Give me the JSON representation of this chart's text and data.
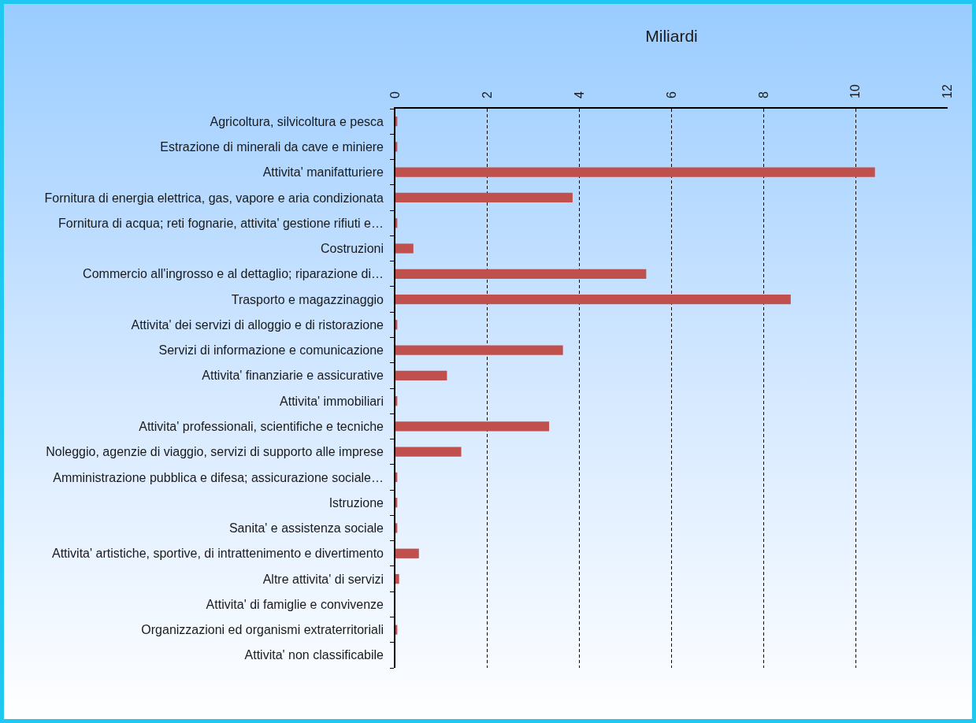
{
  "chart_data": {
    "type": "bar",
    "orientation": "horizontal",
    "xlabel": "Miliardi",
    "categories": [
      "Agricoltura, silvicoltura e pesca",
      "Estrazione di minerali da cave e miniere",
      "Attivita' manifatturiere",
      "Fornitura di energia elettrica, gas, vapore e aria condizionata",
      "Fornitura di acqua; reti fognarie, attivita' gestione rifiuti e…",
      "Costruzioni",
      "Commercio all'ingrosso e al dettaglio; riparazione di…",
      "Trasporto e magazzinaggio",
      "Attivita' dei servizi di alloggio e di ristorazione",
      "Servizi di informazione e comunicazione",
      "Attivita' finanziarie e assicurative",
      "Attivita' immobiliari",
      "Attivita' professionali, scientifiche e tecniche",
      "Noleggio, agenzie di viaggio, servizi di supporto alle imprese",
      "Amministrazione pubblica e difesa; assicurazione sociale…",
      "Istruzione",
      "Sanita' e assistenza sociale",
      "Attivita' artistiche, sportive, di intrattenimento e divertimento",
      "Altre attivita' di servizi",
      "Attivita' di famiglie e convivenze",
      "Organizzazioni ed organismi extraterritoriali",
      "Attivita' non classificabile"
    ],
    "values": [
      0.04,
      0.04,
      10.42,
      3.85,
      0.04,
      0.39,
      5.45,
      8.59,
      0.04,
      3.64,
      1.12,
      0.04,
      3.34,
      1.43,
      0.04,
      0.04,
      0.04,
      0.51,
      0.08,
      0,
      0.04,
      0
    ],
    "color": "#c0504d",
    "xlim": [
      0,
      12
    ],
    "xticks": [
      0,
      2,
      4,
      6,
      8,
      10,
      12
    ],
    "grid": "x"
  }
}
